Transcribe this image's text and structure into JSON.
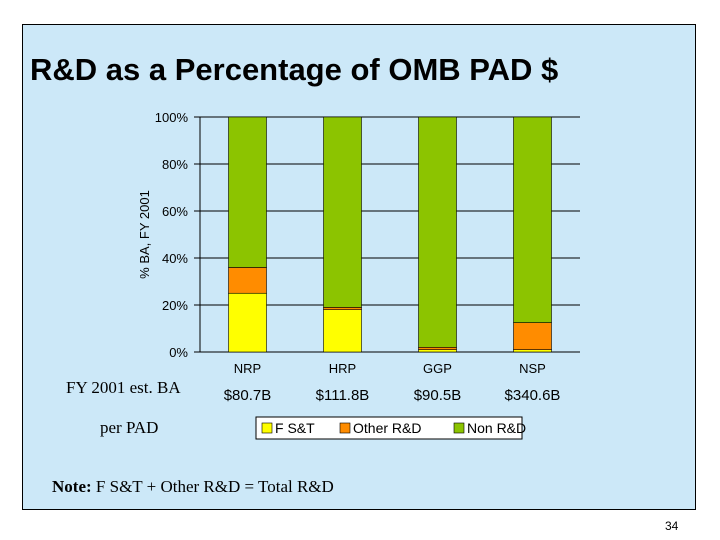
{
  "slide": {
    "title": "R&D as a Percentage of OMB PAD $",
    "fy_label": "FY 2001 est. BA",
    "per_pad_label": "per PAD",
    "note_bold": "Note:",
    "note_text": "F S&T + Other R&D = Total R&D",
    "page_number": "34"
  },
  "colors": {
    "background": "#cce8f8",
    "fst": "#ffff00",
    "other_rd": "#ff8c00",
    "non_rd": "#8cc400"
  },
  "chart_data": {
    "type": "bar",
    "stacked": true,
    "ylabel": "% BA, FY 2001",
    "ylim": [
      0,
      100
    ],
    "yticks": [
      0,
      20,
      40,
      60,
      80,
      100
    ],
    "ytick_labels": [
      "0%",
      "20%",
      "40%",
      "60%",
      "80%",
      "100%"
    ],
    "categories": [
      "NRP",
      "HRP",
      "GGP",
      "NSP"
    ],
    "category_amounts": [
      "$80.7B",
      "$111.8B",
      "$90.5B",
      "$340.6B"
    ],
    "series": [
      {
        "name": "F S&T",
        "color": "#ffff00",
        "values": [
          25,
          18,
          1,
          1
        ]
      },
      {
        "name": "Other R&D",
        "color": "#ff8c00",
        "values": [
          11,
          1,
          1,
          11.5
        ]
      },
      {
        "name": "Non R&D",
        "color": "#8cc400",
        "values": [
          64,
          81,
          98,
          87.5
        ]
      }
    ],
    "legend_position": "bottom"
  }
}
